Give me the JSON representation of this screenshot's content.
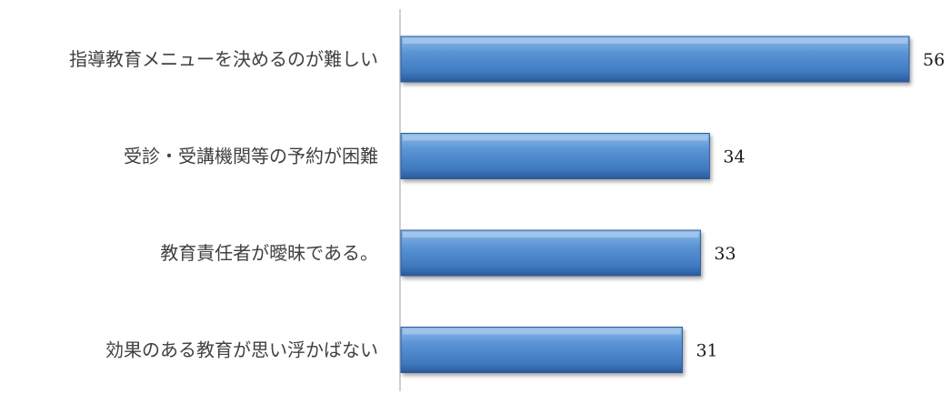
{
  "chart_data": {
    "type": "bar",
    "orientation": "horizontal",
    "categories": [
      "指導教育メニューを決めるのが難しい",
      "受診・受講機関等の予約が困難",
      "教育責任者が曖昧である。",
      "効果のある教育が思い浮かばない"
    ],
    "values": [
      56,
      34,
      33,
      31
    ],
    "title": "",
    "xlabel": "",
    "ylabel": "",
    "xlim": [
      0,
      56
    ],
    "grid": false,
    "legend": "none",
    "colors": {
      "bar": "#4a86cf",
      "bar_dark": "#2a5a99",
      "bar_light": "#8fbbe8",
      "axis": "#bfbfbf"
    }
  }
}
